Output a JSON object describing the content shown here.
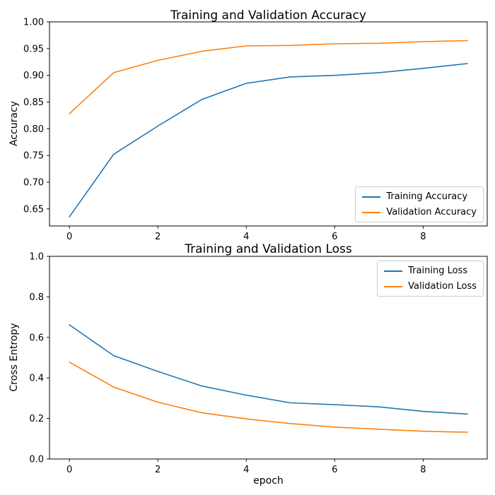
{
  "figure": {
    "background": "#ffffff",
    "accent_colors": {
      "blue": "#1f77b4",
      "orange": "#ff7f0e"
    }
  },
  "chart_data": [
    {
      "type": "line",
      "title": "Training and Validation Accuracy",
      "xlabel": "",
      "ylabel": "Accuracy",
      "grid": false,
      "legend_position": "lower right",
      "x": [
        0,
        1,
        2,
        3,
        4,
        5,
        6,
        7,
        8,
        9
      ],
      "xlim": [
        -0.45,
        9.45
      ],
      "ylim": [
        0.618,
        1.0
      ],
      "xticks": [
        0,
        2,
        4,
        6,
        8
      ],
      "xtick_labels": [
        "0",
        "2",
        "4",
        "6",
        "8"
      ],
      "yticks": [
        0.65,
        0.7,
        0.75,
        0.8,
        0.85,
        0.9,
        0.95,
        1.0
      ],
      "ytick_labels": [
        "0.65",
        "0.70",
        "0.75",
        "0.80",
        "0.85",
        "0.90",
        "0.95",
        "1.00"
      ],
      "series": [
        {
          "name": "Training Accuracy",
          "color": "#1f77b4",
          "values": [
            0.635,
            0.752,
            0.805,
            0.855,
            0.885,
            0.897,
            0.9,
            0.905,
            0.913,
            0.922
          ]
        },
        {
          "name": "Validation Accuracy",
          "color": "#ff7f0e",
          "values": [
            0.828,
            0.905,
            0.928,
            0.945,
            0.955,
            0.956,
            0.959,
            0.96,
            0.963,
            0.965
          ]
        }
      ]
    },
    {
      "type": "line",
      "title": "Training and Validation Loss",
      "xlabel": "epoch",
      "ylabel": "Cross Entropy",
      "grid": false,
      "legend_position": "upper right",
      "x": [
        0,
        1,
        2,
        3,
        4,
        5,
        6,
        7,
        8,
        9
      ],
      "xlim": [
        -0.45,
        9.45
      ],
      "ylim": [
        0.0,
        1.0
      ],
      "xticks": [
        0,
        2,
        4,
        6,
        8
      ],
      "xtick_labels": [
        "0",
        "2",
        "4",
        "6",
        "8"
      ],
      "yticks": [
        0.0,
        0.2,
        0.4,
        0.6,
        0.8,
        1.0
      ],
      "ytick_labels": [
        "0.0",
        "0.2",
        "0.4",
        "0.6",
        "0.8",
        "1.0"
      ],
      "series": [
        {
          "name": "Training Loss",
          "color": "#1f77b4",
          "values": [
            0.662,
            0.51,
            0.432,
            0.36,
            0.315,
            0.277,
            0.268,
            0.257,
            0.235,
            0.222
          ]
        },
        {
          "name": "Validation Loss",
          "color": "#ff7f0e",
          "values": [
            0.478,
            0.355,
            0.28,
            0.228,
            0.198,
            0.175,
            0.157,
            0.147,
            0.137,
            0.132
          ]
        }
      ]
    }
  ]
}
